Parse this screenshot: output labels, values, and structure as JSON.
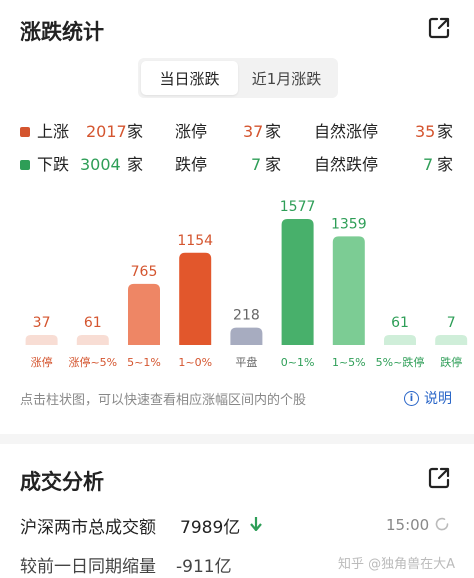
{
  "stats_section": {
    "title": "涨跌统计"
  },
  "tabs": [
    {
      "label": "当日涨跌",
      "active": true
    },
    {
      "label": "近1月涨跌",
      "active": false
    }
  ],
  "summary": {
    "up": {
      "label": "上涨",
      "count": "2017",
      "unit": "家",
      "limit_label": "涨停",
      "limit_count": "37",
      "natural_label": "自然涨停",
      "natural_count": "35"
    },
    "down": {
      "label": "下跌",
      "count": "3004",
      "unit": "家",
      "limit_label": "跌停",
      "limit_count": "7",
      "natural_label": "自然跌停",
      "natural_count": "7"
    }
  },
  "colors": {
    "up": "#d4552f",
    "down": "#2e9e57",
    "flat": "#a7acc0"
  },
  "chart_data": {
    "type": "bar",
    "categories": [
      "涨停",
      "涨停~5%",
      "5~1%",
      "1~0%",
      "平盘",
      "0~1%",
      "1~5%",
      "5%~跌停",
      "跌停"
    ],
    "values": [
      37,
      61,
      765,
      1154,
      218,
      1577,
      1359,
      61,
      7
    ],
    "bar_colors": [
      "#f8ddd4",
      "#f8ddd4",
      "#ee8665",
      "#e2572c",
      "#a7acc0",
      "#48b06b",
      "#7ccc94",
      "#cfeed9",
      "#cfeed9"
    ],
    "label_colors": [
      "#d4552f",
      "#d4552f",
      "#d4552f",
      "#d4552f",
      "#666666",
      "#2e9e57",
      "#2e9e57",
      "#2e9e57",
      "#2e9e57"
    ],
    "title": "",
    "xlabel": "",
    "ylabel": ""
  },
  "hint": "点击柱状图，可以快速查看相应涨幅区间内的个股",
  "explain_label": "说明",
  "turnover_section": {
    "title": "成交分析",
    "total_label": "沪深两市总成交额",
    "total_value": "7989亿",
    "time": "15:00",
    "compare_label": "较前一日同期缩量",
    "compare_value": "-911亿"
  },
  "watermark": "知乎 @独角兽在大A"
}
